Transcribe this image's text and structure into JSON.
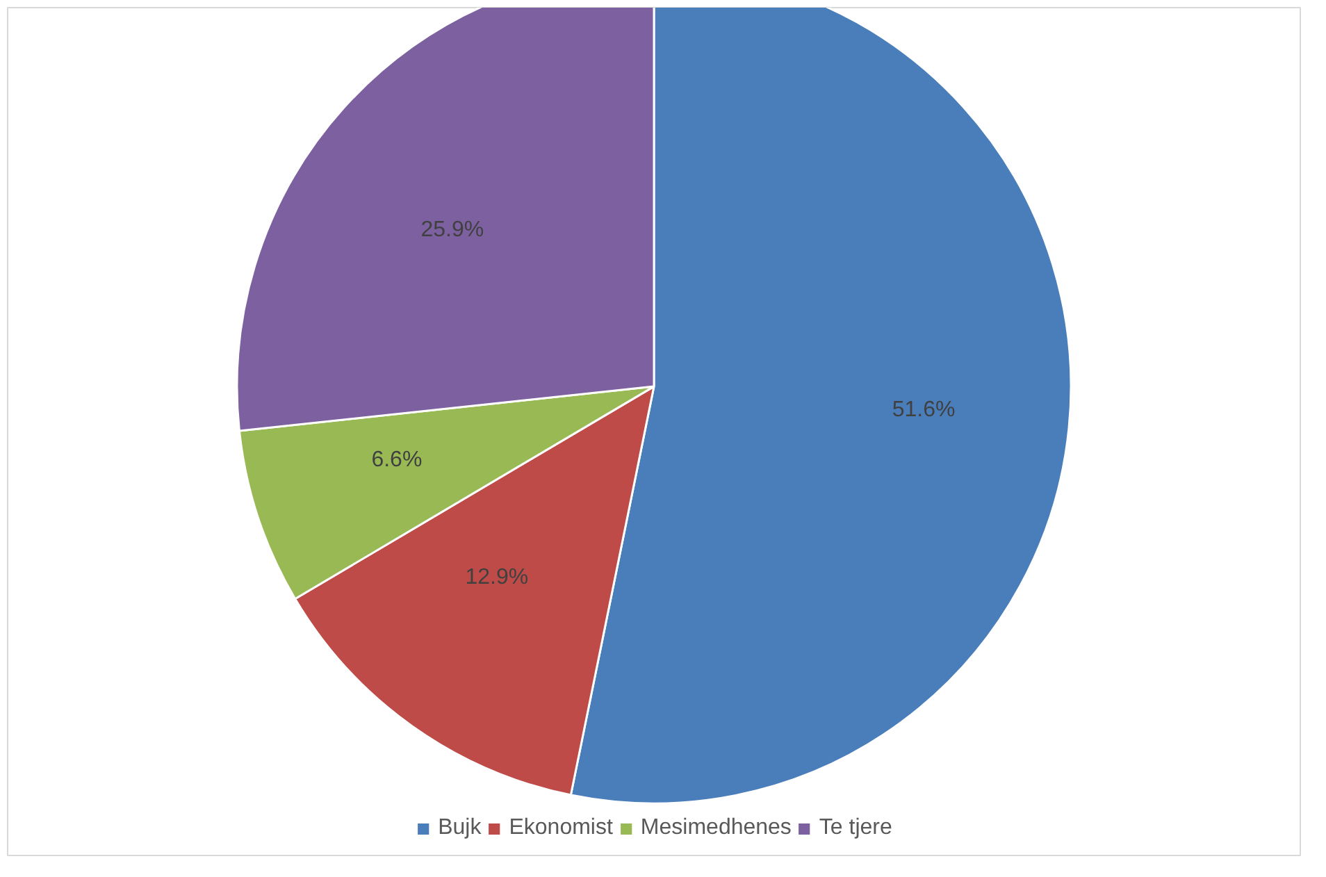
{
  "chart_data": {
    "type": "pie",
    "categories": [
      "Bujk",
      "Ekonomist",
      "Mesimedhenes",
      "Te tjere"
    ],
    "values": [
      51.6,
      12.9,
      6.6,
      25.9
    ],
    "value_labels": [
      "51.6%",
      "12.9%",
      "6.6%",
      "25.9%"
    ],
    "colors": [
      "#4a7ebb",
      "#be4b48",
      "#98b954",
      "#7d60a0"
    ],
    "legend": "bottom"
  }
}
